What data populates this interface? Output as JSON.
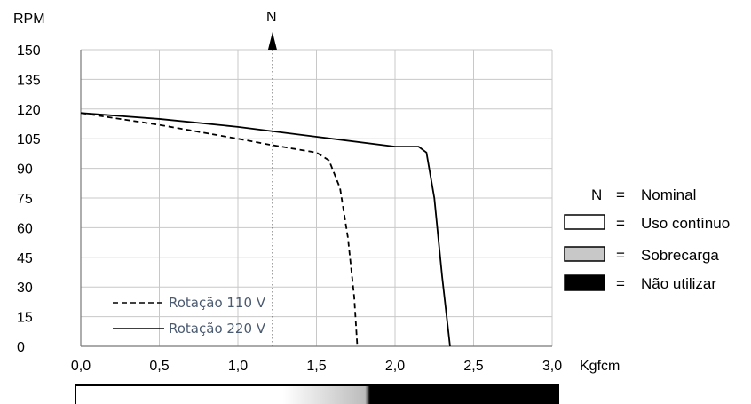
{
  "chart_data": {
    "type": "line",
    "ylabel": "RPM",
    "xlabel": "Kgfcm",
    "xlim": [
      0,
      3
    ],
    "ylim": [
      0,
      150
    ],
    "x_ticks": [
      "0,0",
      "0,5",
      "1,0",
      "1,5",
      "2,0",
      "2,5",
      "3,0"
    ],
    "y_ticks": [
      "0",
      "15",
      "30",
      "45",
      "60",
      "75",
      "90",
      "105",
      "120",
      "135",
      "150"
    ],
    "grid": true,
    "nominal_marker": {
      "label": "N",
      "x": 1.22
    },
    "series": [
      {
        "name": "Rotação 110 V",
        "style": "dashed",
        "points": [
          [
            0,
            118
          ],
          [
            0.5,
            112
          ],
          [
            1.0,
            105
          ],
          [
            1.2,
            102
          ],
          [
            1.5,
            98
          ],
          [
            1.58,
            94
          ],
          [
            1.65,
            80
          ],
          [
            1.7,
            55
          ],
          [
            1.74,
            25
          ],
          [
            1.76,
            0
          ]
        ]
      },
      {
        "name": "Rotação 220 V",
        "style": "solid",
        "points": [
          [
            0,
            118
          ],
          [
            0.5,
            115
          ],
          [
            1.0,
            111
          ],
          [
            1.5,
            106
          ],
          [
            2.0,
            101
          ],
          [
            2.05,
            101
          ],
          [
            2.15,
            101
          ],
          [
            2.2,
            98
          ],
          [
            2.25,
            75
          ],
          [
            2.3,
            35
          ],
          [
            2.35,
            0
          ]
        ]
      }
    ]
  },
  "legend": [
    {
      "symbol": "N",
      "eq": "=",
      "label": "Nominal",
      "swatch": "none"
    },
    {
      "symbol": "",
      "eq": "=",
      "label": "Uso contínuo",
      "swatch": "#ffffff"
    },
    {
      "symbol": "",
      "eq": "=",
      "label": "Sobrecarga",
      "swatch": "#c8c8c8"
    },
    {
      "symbol": "",
      "eq": "=",
      "label": "Não utilizar",
      "swatch": "#000000"
    }
  ],
  "gradient_bar": {
    "white": "#ffffff",
    "gray": "#c8c8c8",
    "black": "#000000"
  }
}
